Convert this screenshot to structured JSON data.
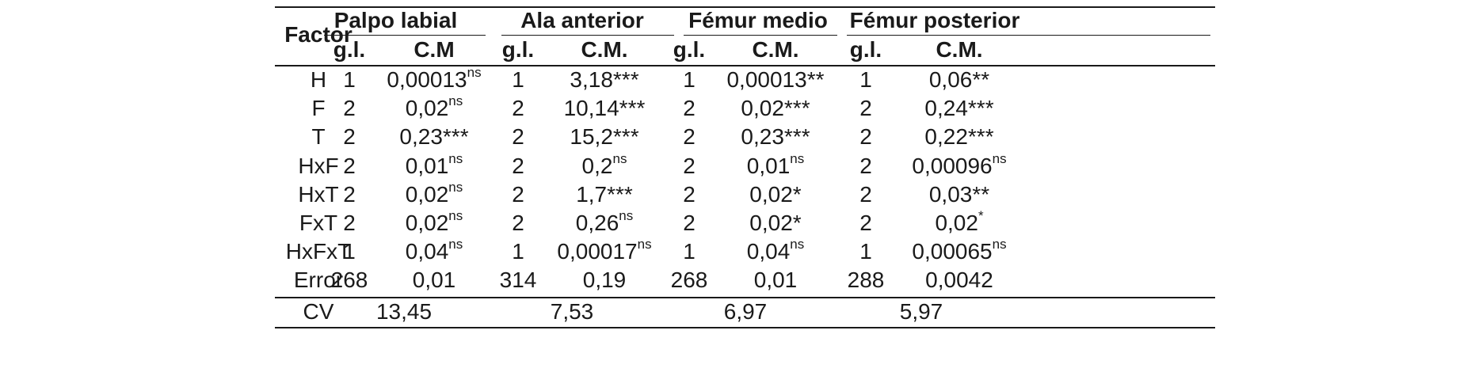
{
  "table": {
    "header": {
      "factor_label": "Factor",
      "groups": [
        "Palpo labial",
        "Ala anterior",
        "Fémur medio",
        "Fémur posterior"
      ],
      "subheaders": [
        [
          "g.l.",
          "C.M"
        ],
        [
          "g.l.",
          "C.M."
        ],
        [
          "g.l.",
          "C.M."
        ],
        [
          "g.l.",
          "C.M."
        ]
      ]
    },
    "rows": [
      {
        "factor": "H",
        "cells": [
          [
            "1",
            "0,00013",
            "ns"
          ],
          [
            "1",
            "3,18***",
            ""
          ],
          [
            "1",
            "0,00013**",
            ""
          ],
          [
            "1",
            "0,06**",
            ""
          ]
        ]
      },
      {
        "factor": "F",
        "cells": [
          [
            "2",
            "0,02",
            "ns"
          ],
          [
            "2",
            "10,14***",
            ""
          ],
          [
            "2",
            "0,02***",
            ""
          ],
          [
            "2",
            "0,24***",
            ""
          ]
        ]
      },
      {
        "factor": "T",
        "cells": [
          [
            "2",
            "0,23***",
            ""
          ],
          [
            "2",
            "15,2***",
            ""
          ],
          [
            "2",
            "0,23***",
            ""
          ],
          [
            "2",
            "0,22***",
            ""
          ]
        ]
      },
      {
        "factor": "HxF",
        "cells": [
          [
            "2",
            "0,01",
            "ns"
          ],
          [
            "2",
            "0,2",
            "ns"
          ],
          [
            "2",
            "0,01",
            "ns"
          ],
          [
            "2",
            "0,00096",
            "ns"
          ]
        ]
      },
      {
        "factor": "HxT",
        "cells": [
          [
            "2",
            "0,02",
            "ns"
          ],
          [
            "2",
            "1,7***",
            ""
          ],
          [
            "2",
            "0,02*",
            ""
          ],
          [
            "2",
            "0,03**",
            ""
          ]
        ]
      },
      {
        "factor": "FxT",
        "cells": [
          [
            "2",
            "0,02",
            "ns"
          ],
          [
            "2",
            "0,26",
            "ns"
          ],
          [
            "2",
            "0,02*",
            ""
          ],
          [
            "2",
            "0,02",
            "*"
          ]
        ]
      },
      {
        "factor": "HxFxT",
        "cells": [
          [
            "1",
            "0,04",
            "ns"
          ],
          [
            "1",
            "0,00017",
            "ns"
          ],
          [
            "1",
            "0,04",
            "ns"
          ],
          [
            "1",
            "0,00065",
            "ns"
          ]
        ]
      },
      {
        "factor": "Error",
        "cells": [
          [
            "268",
            "0,01",
            ""
          ],
          [
            "314",
            "0,19",
            ""
          ],
          [
            "268",
            "0,01",
            ""
          ],
          [
            "288",
            "0,0042",
            ""
          ]
        ]
      }
    ],
    "cv": {
      "label": "CV",
      "values": [
        "13,45",
        "7,53",
        "6,97",
        "5,97"
      ]
    }
  }
}
